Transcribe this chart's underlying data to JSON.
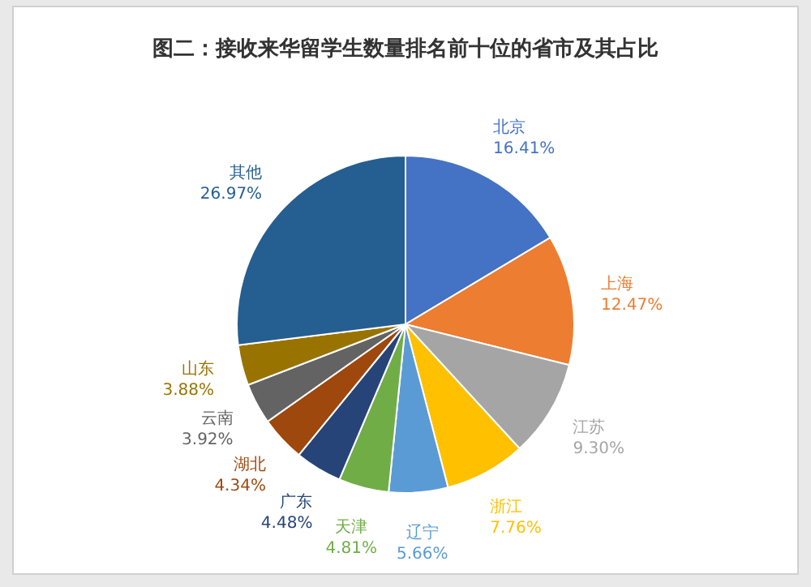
{
  "chart_data": {
    "type": "pie",
    "title": "图二：接收来华留学生数量排名前十位的省市及其占比",
    "categories": [
      "北京",
      "上海",
      "江苏",
      "浙江",
      "辽宁",
      "天津",
      "广东",
      "湖北",
      "云南",
      "山东",
      "其他"
    ],
    "values": [
      16.41,
      12.47,
      9.3,
      7.76,
      5.66,
      4.81,
      4.48,
      4.34,
      3.92,
      3.88,
      26.97
    ],
    "value_labels": [
      "16.41%",
      "12.47%",
      "9.30%",
      "7.76%",
      "5.66%",
      "4.81%",
      "4.48%",
      "4.34%",
      "3.92%",
      "3.88%",
      "26.97%"
    ],
    "colors": [
      "#4472c4",
      "#ed7d31",
      "#a5a5a5",
      "#ffc000",
      "#5b9bd5",
      "#70ad47",
      "#264478",
      "#9e480e",
      "#636363",
      "#997300",
      "#255e91"
    ]
  }
}
